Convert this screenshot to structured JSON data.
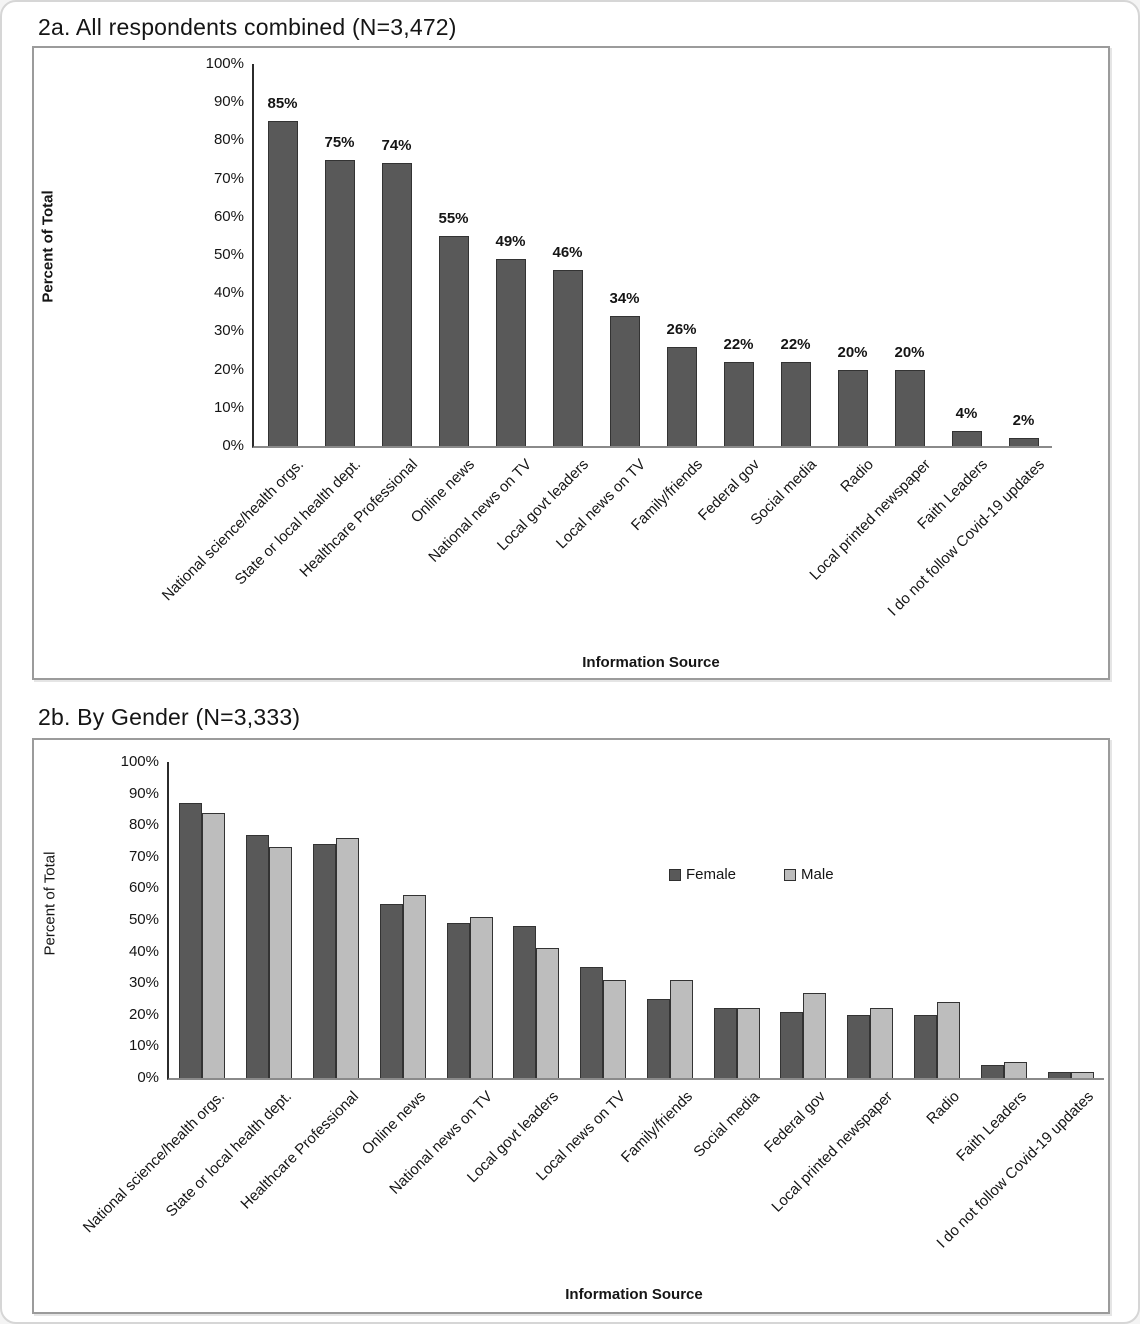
{
  "chart_data": [
    {
      "type": "bar",
      "title": "2a. All respondents combined (N=3,472)",
      "xlabel": "Information Source",
      "ylabel": "Percent of Total",
      "ylim": [
        0,
        100
      ],
      "ytick_step": 10,
      "ytick_suffix": "%",
      "grid": false,
      "legend": null,
      "bar_color": "#595959",
      "categories": [
        "National science/health orgs.",
        "State or local health dept.",
        "Healthcare Professional",
        "Online news",
        "National news on TV",
        "Local govt leaders",
        "Local news on TV",
        "Family/friends",
        "Federal gov",
        "Social media",
        "Radio",
        "Local printed newspaper",
        "Faith Leaders",
        "I do not follow Covid-19 updates"
      ],
      "values": [
        85,
        75,
        74,
        55,
        49,
        46,
        34,
        26,
        22,
        22,
        20,
        20,
        4,
        2
      ],
      "value_labels": [
        "85%",
        "75%",
        "74%",
        "55%",
        "49%",
        "46%",
        "34%",
        "26%",
        "22%",
        "22%",
        "20%",
        "20%",
        "4%",
        "2%"
      ]
    },
    {
      "type": "bar",
      "title": "2b. By Gender (N=3,333)",
      "xlabel": "Information Source",
      "ylabel": "Percent of Total",
      "ylim": [
        0,
        100
      ],
      "ytick_step": 10,
      "ytick_suffix": "%",
      "grid": false,
      "legend_position": "inside-top-right",
      "categories": [
        "National science/health orgs.",
        "State or local health dept.",
        "Healthcare Professional",
        "Online news",
        "National news on TV",
        "Local govt leaders",
        "Local news on TV",
        "Family/friends",
        "Social media",
        "Federal gov",
        "Local printed newspaper",
        "Radio",
        "Faith Leaders",
        "I do not follow Covid-19 updates"
      ],
      "series": [
        {
          "name": "Female",
          "color": "#595959",
          "values": [
            87,
            77,
            74,
            55,
            49,
            48,
            35,
            25,
            22,
            21,
            20,
            20,
            4,
            2
          ]
        },
        {
          "name": "Male",
          "color": "#bdbdbd",
          "values": [
            84,
            73,
            76,
            58,
            51,
            41,
            31,
            31,
            22,
            27,
            22,
            24,
            5,
            2
          ]
        }
      ]
    }
  ]
}
